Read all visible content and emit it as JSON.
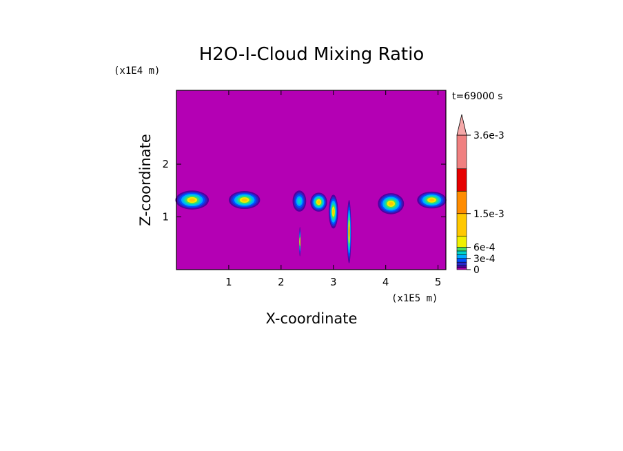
{
  "chart_data": {
    "type": "heatmap",
    "title": "H2O-I-Cloud Mixing Ratio",
    "xlabel": "X-coordinate",
    "ylabel": "Z-coordinate",
    "x_unit": "(x1E5 m)",
    "y_unit": "(x1E4 m)",
    "time_label": "t=69000 s",
    "xlim": [
      0,
      5.15
    ],
    "ylim": [
      0,
      3.4
    ],
    "x_ticks": [
      1,
      2,
      3,
      4,
      5
    ],
    "y_ticks": [
      1,
      2
    ],
    "x_tick_labels": [
      "1",
      "2",
      "3",
      "4",
      "5"
    ],
    "y_tick_labels": [
      "1",
      "2"
    ],
    "grid": false,
    "background_value": 0,
    "colorbar": {
      "levels": [
        {
          "value": 0,
          "color": "#b400b4"
        },
        {
          "value": 5e-05,
          "color": "#5000a0"
        },
        {
          "value": 0.0001,
          "color": "#2828c8"
        },
        {
          "value": 0.0002,
          "color": "#0050ff"
        },
        {
          "value": 0.0003,
          "color": "#00aaff"
        },
        {
          "value": 0.0004,
          "color": "#00d2c8"
        },
        {
          "value": 0.0005,
          "color": "#46dc64"
        },
        {
          "value": 0.0006,
          "color": "#f0f000"
        },
        {
          "value": 0.0009,
          "color": "#ffc800"
        },
        {
          "value": 0.0015,
          "color": "#ff8c00"
        },
        {
          "value": 0.0021,
          "color": "#e60000"
        },
        {
          "value": 0.0027,
          "color": "#f08080"
        },
        {
          "value": 0.0036,
          "color": "#f5a8a8"
        }
      ],
      "extend": "max",
      "tick_labels": [
        "3.6e-3",
        "1.5e-3",
        "6e-4",
        "3e-4",
        "0"
      ],
      "tick_values": [
        0.0036,
        0.0015,
        0.0006,
        0.0003,
        0
      ]
    },
    "features": [
      {
        "name": "cloud-patch",
        "x_center": 0.3,
        "z_center": 1.32,
        "x_halfwidth": 0.32,
        "z_halfwidth": 0.18,
        "peak": 0.0012
      },
      {
        "name": "cloud-patch",
        "x_center": 1.3,
        "z_center": 1.32,
        "x_halfwidth": 0.3,
        "z_halfwidth": 0.17,
        "peak": 0.0012
      },
      {
        "name": "cloud-patch",
        "x_center": 2.35,
        "z_center": 1.3,
        "x_halfwidth": 0.13,
        "z_halfwidth": 0.2,
        "peak": 0.0004
      },
      {
        "name": "cloud-patch",
        "x_center": 2.72,
        "z_center": 1.28,
        "x_halfwidth": 0.16,
        "z_halfwidth": 0.18,
        "peak": 0.0011
      },
      {
        "name": "cloud-patch",
        "x_center": 3.0,
        "z_center": 1.1,
        "x_halfwidth": 0.09,
        "z_halfwidth": 0.32,
        "peak": 0.0012
      },
      {
        "name": "cloud-patch",
        "x_center": 4.1,
        "z_center": 1.25,
        "x_halfwidth": 0.25,
        "z_halfwidth": 0.2,
        "peak": 0.0009
      },
      {
        "name": "cloud-patch",
        "x_center": 4.88,
        "z_center": 1.32,
        "x_halfwidth": 0.28,
        "z_halfwidth": 0.16,
        "peak": 0.0011
      },
      {
        "name": "cloud-column",
        "x_center": 2.36,
        "z_center": 0.53,
        "x_halfwidth": 0.015,
        "z_halfwidth": 0.28,
        "peak": 0.0012
      },
      {
        "name": "cloud-column",
        "x_center": 3.3,
        "z_center": 0.72,
        "x_halfwidth": 0.04,
        "z_halfwidth": 0.6,
        "peak": 0.0016
      }
    ]
  }
}
